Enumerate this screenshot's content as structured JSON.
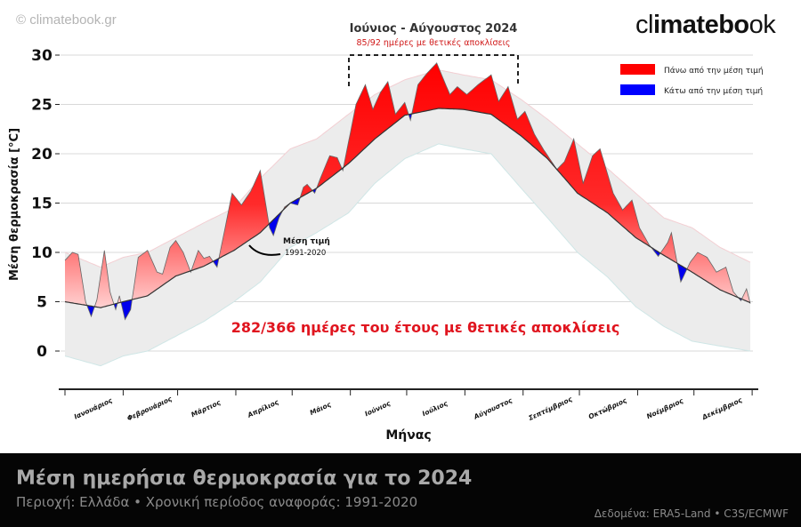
{
  "watermark": "© climatebook.gr",
  "logo": {
    "part1": "cl",
    "part2": "imatebo",
    "part3": "ok"
  },
  "footer": {
    "title": "Μέση ημερήσια θερμοκρασία για το 2024",
    "subtitle": "Περιοχή: Ελλάδα • Χρονική περίοδος αναφοράς: 1991-2020",
    "source": "Δεδομένα: ERA5-Land • C3S/ECMWF"
  },
  "chart_data": {
    "type": "area",
    "xlabel": "Μήνας",
    "ylabel": "Μέση θερμοκρασία [°C]",
    "ylim": [
      -3.9,
      31
    ],
    "yticks": [
      0,
      5,
      10,
      15,
      20,
      25,
      30
    ],
    "grid": true,
    "months": [
      "Ιανουάριος",
      "Φεβρουάριος",
      "Μάρτιος",
      "Απρίλιος",
      "Μάιος",
      "Ιούνιος",
      "Ιούλιος",
      "Αύγουστος",
      "Σεπτέμβριος",
      "Οκτώβριος",
      "Νοέμβριος",
      "Δεκέμβριος"
    ],
    "month_start_days": [
      1,
      32,
      61,
      92,
      122,
      153,
      183,
      214,
      245,
      275,
      306,
      336,
      367
    ],
    "legend": {
      "position": "top-right",
      "above": {
        "label": "Πάνω από την μέση τιμή",
        "color": "#ff0000"
      },
      "below": {
        "label": "Κάτω από την μέση τιμή",
        "color": "#0000ff"
      }
    },
    "highlight": {
      "title": "Ιούνιος - Αύγουστος 2024",
      "subtitle": "85/92 ημέρες με θετικές αποκλίσεις",
      "from_day": 153,
      "to_day": 244
    },
    "annotation_mean": {
      "label": "Μέση τιμή",
      "period": "1991-2020"
    },
    "summary": "282/366 ημέρες του έτους με θετικές αποκλίσεις",
    "series_2024": {
      "days": [
        1,
        5,
        8,
        12,
        15,
        18,
        22,
        25,
        28,
        30,
        33,
        36,
        40,
        45,
        50,
        53,
        57,
        60,
        64,
        68,
        72,
        75,
        78,
        82,
        86,
        90,
        95,
        100,
        105,
        110,
        112,
        115,
        118,
        121,
        125,
        128,
        130,
        134,
        137,
        142,
        146,
        149,
        156,
        161,
        165,
        169,
        173,
        177,
        182,
        185,
        189,
        194,
        199,
        206,
        210,
        215,
        221,
        228,
        232,
        237,
        242,
        246,
        251,
        256,
        263,
        267,
        272,
        277,
        282,
        286,
        293,
        298,
        303,
        307,
        312,
        317,
        322,
        324,
        329,
        334,
        338,
        343,
        348,
        353,
        357,
        361,
        364,
        366
      ],
      "values": [
        9.2,
        10.0,
        9.8,
        5.0,
        3.5,
        5.2,
        10.2,
        6.0,
        4.2,
        5.6,
        3.2,
        4.2,
        9.5,
        10.2,
        8.0,
        7.8,
        10.5,
        11.2,
        10.0,
        8.0,
        10.2,
        9.4,
        9.6,
        8.5,
        12.2,
        16.0,
        14.8,
        16.2,
        18.3,
        12.5,
        11.7,
        13.5,
        14.6,
        15.0,
        14.8,
        16.6,
        16.9,
        16.0,
        17.5,
        19.8,
        19.6,
        18.3,
        25.0,
        27.0,
        24.5,
        26.2,
        27.3,
        24.0,
        25.2,
        23.4,
        27.0,
        28.2,
        29.2,
        26.0,
        26.8,
        26.0,
        27.0,
        28.0,
        25.3,
        26.8,
        23.5,
        24.3,
        22.0,
        20.4,
        18.4,
        19.2,
        21.5,
        17.0,
        19.8,
        20.5,
        16.0,
        14.3,
        15.3,
        12.5,
        10.8,
        9.6,
        11.0,
        12.0,
        7.0,
        9.0,
        10.0,
        9.5,
        8.0,
        8.5,
        6.0,
        5.1,
        6.3,
        4.8
      ]
    },
    "mean_1991_2020": {
      "days": [
        1,
        20,
        32,
        45,
        60,
        75,
        91,
        105,
        121,
        135,
        152,
        166,
        182,
        200,
        213,
        228,
        244,
        258,
        274,
        290,
        305,
        320,
        335,
        350,
        366
      ],
      "values": [
        5.0,
        4.4,
        5.0,
        5.6,
        7.6,
        8.6,
        10.2,
        12.0,
        15.0,
        16.5,
        19.0,
        21.5,
        23.9,
        24.6,
        24.5,
        24.0,
        21.8,
        19.5,
        16.0,
        14.0,
        11.5,
        9.7,
        8.0,
        6.2,
        4.9
      ]
    },
    "range_1991_2020": {
      "days": [
        1,
        20,
        32,
        45,
        60,
        75,
        91,
        105,
        121,
        135,
        152,
        166,
        182,
        200,
        213,
        228,
        244,
        258,
        274,
        290,
        305,
        320,
        335,
        350,
        366
      ],
      "upper": [
        10.0,
        8.5,
        9.5,
        10.0,
        11.5,
        13.0,
        14.5,
        17.5,
        20.5,
        21.5,
        24.0,
        26.0,
        27.5,
        28.5,
        28.0,
        27.5,
        25.5,
        23.5,
        21.0,
        18.5,
        16.0,
        13.5,
        12.5,
        10.5,
        9.0
      ],
      "lower": [
        -0.5,
        -1.5,
        -0.5,
        0.0,
        1.5,
        3.0,
        5.0,
        7.0,
        10.5,
        12.0,
        14.0,
        17.0,
        19.5,
        21.0,
        20.5,
        20.0,
        16.5,
        13.5,
        10.0,
        7.5,
        4.5,
        2.5,
        1.0,
        0.5,
        0.0
      ]
    }
  }
}
